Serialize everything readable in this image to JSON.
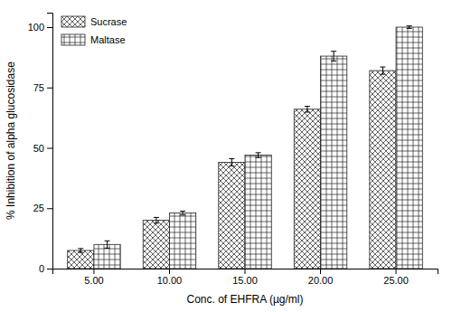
{
  "chart_data": {
    "type": "bar",
    "categories": [
      "5.00",
      "10.00",
      "15.00",
      "20.00",
      "25.00"
    ],
    "series": [
      {
        "name": "Sucrase",
        "color": "white",
        "values": [
          7.5,
          20.0,
          44.0,
          66.0,
          82.0
        ],
        "errors": [
          0.8,
          1.2,
          1.5,
          1.2,
          1.5
        ]
      },
      {
        "name": "Maltase",
        "color": "white",
        "values": [
          10.0,
          23.0,
          47.0,
          88.0,
          100.0
        ],
        "errors": [
          1.5,
          0.8,
          1.0,
          2.0,
          0.5
        ]
      }
    ],
    "xlabel": "Conc. of EHFRA (µg/ml)",
    "ylabel": "% Inhibition of alpha glucosidase",
    "ylim": [
      0,
      106
    ],
    "yticks": [
      0,
      25,
      50,
      75,
      100
    ],
    "grid": false,
    "legend": "upper left"
  }
}
